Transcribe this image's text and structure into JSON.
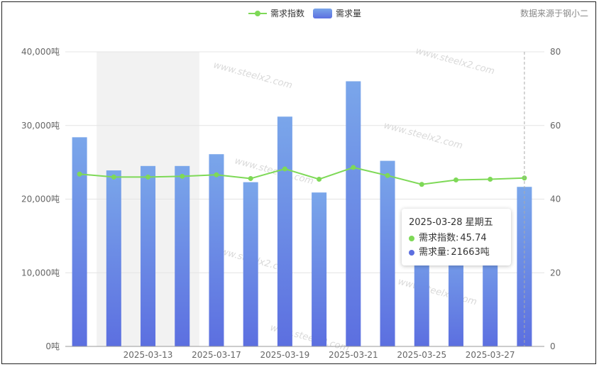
{
  "source_note": "数据来源于钢小二",
  "watermark": "www.steelx2.com",
  "colors": {
    "line": "#7ed957",
    "bar_top": "#7aa6ea",
    "bar_bottom": "#5c6fe0",
    "highlight_band": "#f2f2f2",
    "grid": "#e4e4e4"
  },
  "chart_data": {
    "type": "bar",
    "x": [
      "2025-03-11",
      "2025-03-12",
      "2025-03-13",
      "2025-03-14",
      "2025-03-17",
      "2025-03-18",
      "2025-03-19",
      "2025-03-20",
      "2025-03-21",
      "2025-03-24",
      "2025-03-25",
      "2025-03-26",
      "2025-03-27",
      "2025-03-28"
    ],
    "x_tick_labels": [
      "2025-03-13",
      "2025-03-17",
      "2025-03-19",
      "2025-03-21",
      "2025-03-25",
      "2025-03-27"
    ],
    "series": [
      {
        "name": "需求量",
        "type": "bar",
        "axis": "left",
        "values": [
          28400,
          23900,
          24500,
          24500,
          26100,
          22300,
          31200,
          20900,
          36000,
          25200,
          15200,
          14800,
          15000,
          21663
        ]
      },
      {
        "name": "需求指数",
        "type": "line",
        "axis": "right",
        "values": [
          46.8,
          46.0,
          46.0,
          46.2,
          46.6,
          45.6,
          48.2,
          45.4,
          48.6,
          46.4,
          44.0,
          45.2,
          45.4,
          45.74
        ]
      }
    ],
    "y_left": {
      "min": 0,
      "max": 40000,
      "ticks": [
        "0吨",
        "10,000吨",
        "20,000吨",
        "30,000吨",
        "40,000吨"
      ]
    },
    "y_right": {
      "min": 0,
      "max": 80,
      "ticks": [
        "0",
        "20",
        "40",
        "60",
        "80"
      ]
    },
    "legend": {
      "placement": "top-center",
      "entries": [
        "需求指数",
        "需求量"
      ]
    },
    "highlight_range": [
      "2025-03-12",
      "2025-03-14"
    ],
    "tooltip": {
      "title": "2025-03-28 星期五",
      "rows": [
        {
          "label": "需求指数:",
          "value": "45.74"
        },
        {
          "label": "需求量:",
          "value": "21663吨"
        }
      ]
    }
  }
}
